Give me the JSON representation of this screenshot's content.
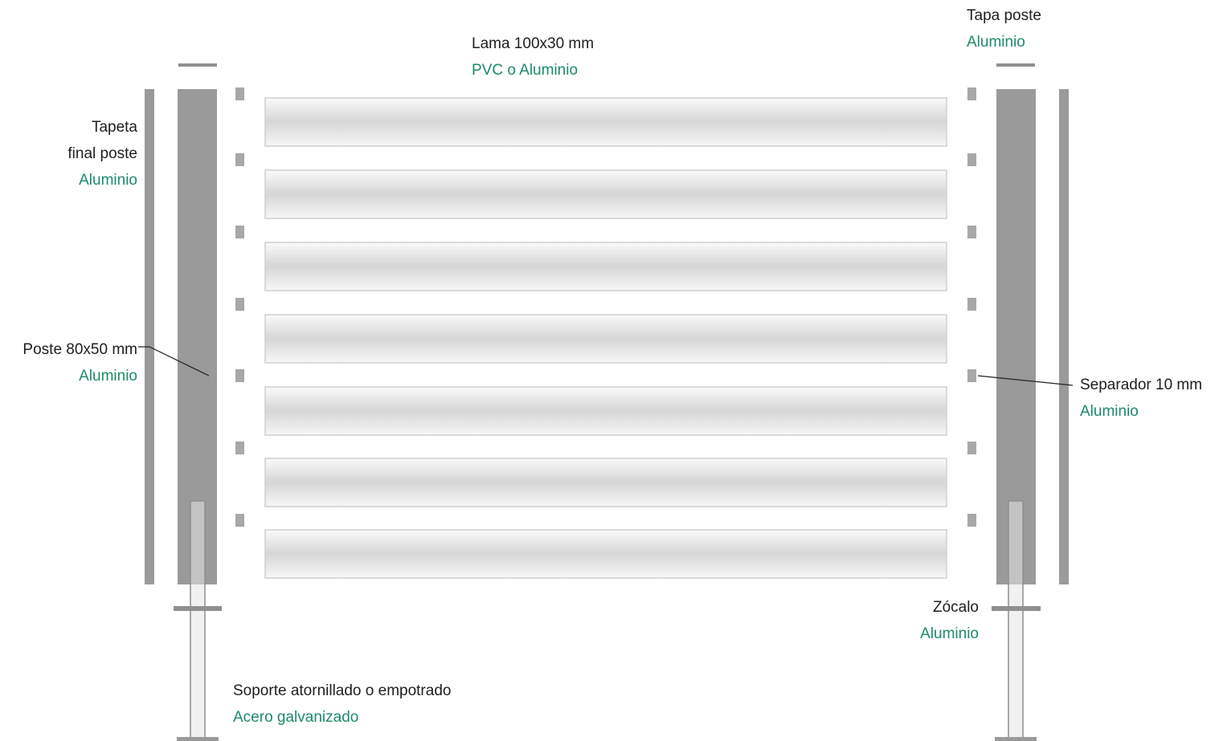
{
  "colors": {
    "material_text": "#1e8a6b",
    "label_text": "#1e1e1e",
    "post_fill": "#9a9a9a",
    "post_light": "#a8a8a8",
    "slat_edge": "#cfcfcf",
    "slat_light": "#fafafa",
    "slat_mid": "#d6d6d6",
    "support_fill": "#e6e6e6",
    "support_stroke": "#8e8e8e",
    "leader_line": "#222222"
  },
  "labels": {
    "lama": {
      "title": "Lama 100x30 mm",
      "material": "PVC o Aluminio"
    },
    "tapa_poste": {
      "title": "Tapa poste",
      "material": "Aluminio"
    },
    "tapeta": {
      "title_line1": "Tapeta",
      "title_line2": "final poste",
      "material": "Aluminio"
    },
    "poste": {
      "title": "Poste 80x50 mm",
      "material": "Aluminio"
    },
    "separador": {
      "title": "Separador 10 mm",
      "material": "Aluminio"
    },
    "zocalo": {
      "title": "Zócalo",
      "material": "Aluminio"
    },
    "soporte": {
      "title": "Soporte atornillado o empotrado",
      "material": "Acero galvanizado"
    }
  },
  "icons": {
    "post": "post-shape",
    "slat": "slat-shape",
    "spacer": "spacer-shape",
    "support": "support-shape"
  }
}
